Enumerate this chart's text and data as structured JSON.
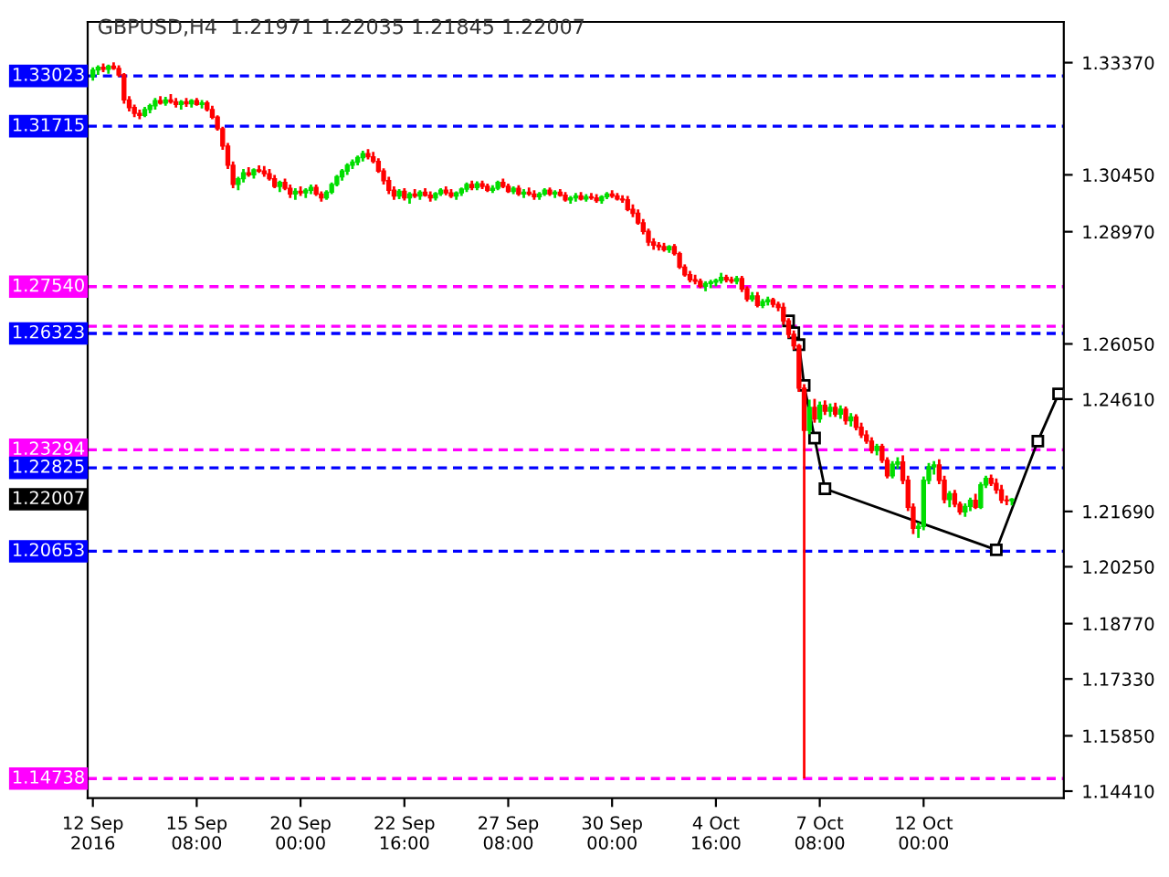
{
  "chart_data": {
    "type": "candlestick",
    "title": "GBPUSD,H4  1.21971 1.22035 1.21845 1.22007",
    "categories": [
      "12 Sep 2016",
      null,
      null,
      null,
      null,
      null,
      null,
      null,
      null,
      null,
      null,
      null,
      null,
      null,
      null,
      null,
      null,
      null,
      null,
      null,
      "15 Sep 08:00",
      null,
      null,
      null,
      null,
      null,
      null,
      null,
      null,
      null,
      null,
      null,
      null,
      null,
      null,
      null,
      null,
      null,
      null,
      null,
      "20 Sep 00:00",
      null,
      null,
      null,
      null,
      null,
      null,
      null,
      null,
      null,
      null,
      null,
      null,
      null,
      null,
      null,
      null,
      null,
      null,
      null,
      "22 Sep 16:00",
      null,
      null,
      null,
      null,
      null,
      null,
      null,
      null,
      null,
      null,
      null,
      null,
      null,
      null,
      null,
      null,
      null,
      null,
      null,
      "27 Sep 08:00",
      null,
      null,
      null,
      null,
      null,
      null,
      null,
      null,
      null,
      null,
      null,
      null,
      null,
      null,
      null,
      null,
      null,
      null,
      null,
      "30 Sep 00:00",
      null,
      null,
      null,
      null,
      null,
      null,
      null,
      null,
      null,
      null,
      null,
      null,
      null,
      null,
      null,
      null,
      null,
      null,
      null,
      "4 Oct 16:00",
      null,
      null,
      null,
      null,
      null,
      null,
      null,
      null,
      null,
      null,
      null,
      null,
      null,
      null,
      null,
      null,
      null,
      null,
      null,
      "7 Oct 08:00",
      null,
      null,
      null,
      null,
      null,
      null,
      null,
      null,
      null,
      null,
      null,
      null,
      null,
      null,
      null,
      null,
      null,
      null,
      null,
      "12 Oct 00:00",
      null,
      null,
      null,
      null,
      null,
      null,
      null,
      null,
      null,
      null,
      null,
      null,
      null,
      null,
      null,
      null,
      null,
      null,
      null,
      null,
      null,
      null,
      null,
      null,
      null,
      null
    ],
    "ohlc": [
      [
        1.33,
        1.3325,
        1.329,
        1.3318
      ],
      [
        1.3318,
        1.333,
        1.3305,
        1.3325
      ],
      [
        1.3325,
        1.3335,
        1.3312,
        1.332
      ],
      [
        1.332,
        1.3332,
        1.3308,
        1.3328
      ],
      [
        1.3328,
        1.3338,
        1.3318,
        1.3322
      ],
      [
        1.3322,
        1.333,
        1.33,
        1.3305
      ],
      [
        1.3305,
        1.331,
        1.323,
        1.324
      ],
      [
        1.324,
        1.325,
        1.321,
        1.322
      ],
      [
        1.322,
        1.3228,
        1.3195,
        1.3205
      ],
      [
        1.3205,
        1.3215,
        1.319,
        1.32
      ],
      [
        1.32,
        1.3222,
        1.3195,
        1.3215
      ],
      [
        1.3215,
        1.323,
        1.3205,
        1.3225
      ],
      [
        1.3225,
        1.3245,
        1.3215,
        1.3238
      ],
      [
        1.3238,
        1.325,
        1.3228,
        1.3232
      ],
      [
        1.3232,
        1.3248,
        1.3225,
        1.324
      ],
      [
        1.324,
        1.3255,
        1.323,
        1.3235
      ],
      [
        1.3235,
        1.3245,
        1.322,
        1.3228
      ],
      [
        1.3228,
        1.324,
        1.3215,
        1.3235
      ],
      [
        1.3235,
        1.3245,
        1.3222,
        1.323
      ],
      [
        1.323,
        1.3242,
        1.322,
        1.3238
      ],
      [
        1.3238,
        1.3245,
        1.3225,
        1.3228
      ],
      [
        1.3228,
        1.324,
        1.3218,
        1.3232
      ],
      [
        1.3232,
        1.3238,
        1.321,
        1.3215
      ],
      [
        1.3215,
        1.3225,
        1.319,
        1.3195
      ],
      [
        1.3195,
        1.32,
        1.316,
        1.3165
      ],
      [
        1.3165,
        1.317,
        1.311,
        1.312
      ],
      [
        1.312,
        1.3128,
        1.306,
        1.307
      ],
      [
        1.307,
        1.308,
        1.301,
        1.302
      ],
      [
        1.302,
        1.304,
        1.3005,
        1.3035
      ],
      [
        1.3035,
        1.306,
        1.3025,
        1.305
      ],
      [
        1.305,
        1.3065,
        1.304,
        1.3045
      ],
      [
        1.3045,
        1.3062,
        1.3035,
        1.3058
      ],
      [
        1.3058,
        1.307,
        1.305,
        1.3055
      ],
      [
        1.3055,
        1.3068,
        1.304,
        1.3048
      ],
      [
        1.3048,
        1.306,
        1.303,
        1.3035
      ],
      [
        1.3035,
        1.3045,
        1.301,
        1.3015
      ],
      [
        1.3015,
        1.303,
        1.3,
        1.3025
      ],
      [
        1.3025,
        1.3035,
        1.3005,
        1.301
      ],
      [
        1.301,
        1.302,
        1.2985,
        1.2995
      ],
      [
        1.2995,
        1.301,
        1.298,
        1.3002
      ],
      [
        1.3002,
        1.3015,
        1.299,
        1.2998
      ],
      [
        1.2998,
        1.301,
        1.2985,
        1.3005
      ],
      [
        1.3005,
        1.302,
        1.2995,
        1.3012
      ],
      [
        1.3012,
        1.302,
        1.299,
        1.2995
      ],
      [
        1.2995,
        1.3002,
        1.2975,
        1.2985
      ],
      [
        1.2985,
        1.3005,
        1.298,
        1.3
      ],
      [
        1.3,
        1.3025,
        1.2995,
        1.302
      ],
      [
        1.302,
        1.3045,
        1.3015,
        1.304
      ],
      [
        1.304,
        1.306,
        1.303,
        1.3055
      ],
      [
        1.3055,
        1.3075,
        1.3045,
        1.307
      ],
      [
        1.307,
        1.3085,
        1.306,
        1.3078
      ],
      [
        1.3078,
        1.3095,
        1.307,
        1.309
      ],
      [
        1.309,
        1.3108,
        1.308,
        1.31
      ],
      [
        1.31,
        1.3112,
        1.3085,
        1.3092
      ],
      [
        1.3092,
        1.3105,
        1.3075,
        1.308
      ],
      [
        1.308,
        1.3088,
        1.305,
        1.3055
      ],
      [
        1.3055,
        1.3062,
        1.302,
        1.303
      ],
      [
        1.303,
        1.304,
        1.2995,
        1.3005
      ],
      [
        1.3005,
        1.3015,
        1.298,
        1.299
      ],
      [
        1.299,
        1.3008,
        1.2982,
        1.3002
      ],
      [
        1.3002,
        1.301,
        1.2978,
        1.2985
      ],
      [
        1.2985,
        1.3,
        1.297,
        1.2995
      ],
      [
        1.2995,
        1.3008,
        1.2985,
        1.299
      ],
      [
        1.299,
        1.3005,
        1.298,
        1.3
      ],
      [
        1.3,
        1.301,
        1.2988,
        1.2992
      ],
      [
        1.2992,
        1.3002,
        1.2975,
        1.2985
      ],
      [
        1.2985,
        1.3,
        1.2978,
        1.2996
      ],
      [
        1.2996,
        1.301,
        1.299,
        1.3005
      ],
      [
        1.3005,
        1.3015,
        1.2992,
        1.2998
      ],
      [
        1.2998,
        1.3008,
        1.2985,
        1.299
      ],
      [
        1.299,
        1.3002,
        1.298,
        1.2998
      ],
      [
        1.2998,
        1.3012,
        1.299,
        1.3008
      ],
      [
        1.3008,
        1.3025,
        1.3,
        1.302
      ],
      [
        1.302,
        1.303,
        1.3005,
        1.3012
      ],
      [
        1.3012,
        1.3028,
        1.3005,
        1.3022
      ],
      [
        1.3022,
        1.303,
        1.3008,
        1.3015
      ],
      [
        1.3015,
        1.3022,
        1.3,
        1.3005
      ],
      [
        1.3005,
        1.3018,
        1.2998,
        1.301
      ],
      [
        1.301,
        1.303,
        1.3005,
        1.3025
      ],
      [
        1.3025,
        1.3035,
        1.301,
        1.3015
      ],
      [
        1.3015,
        1.3022,
        1.2998,
        1.3002
      ],
      [
        1.3002,
        1.3015,
        1.2995,
        1.301
      ],
      [
        1.301,
        1.3018,
        1.299,
        1.2995
      ],
      [
        1.2995,
        1.3008,
        1.2985,
        1.3
      ],
      [
        1.3,
        1.3012,
        1.299,
        1.2995
      ],
      [
        1.2995,
        1.3005,
        1.298,
        1.2988
      ],
      [
        1.2988,
        1.3,
        1.298,
        1.2995
      ],
      [
        1.2995,
        1.301,
        1.299,
        1.3005
      ],
      [
        1.3005,
        1.3012,
        1.299,
        1.2995
      ],
      [
        1.2995,
        1.3005,
        1.2985,
        1.3
      ],
      [
        1.3,
        1.3008,
        1.2988,
        1.2992
      ],
      [
        1.2992,
        1.3,
        1.2975,
        1.298
      ],
      [
        1.298,
        1.299,
        1.297,
        1.2985
      ],
      [
        1.2985,
        1.2998,
        1.2975,
        1.299
      ],
      [
        1.299,
        1.3,
        1.2978,
        1.2982
      ],
      [
        1.2982,
        1.2995,
        1.2975,
        1.2988
      ],
      [
        1.2988,
        1.2998,
        1.298,
        1.2985
      ],
      [
        1.2985,
        1.2995,
        1.2972,
        1.2978
      ],
      [
        1.2978,
        1.2992,
        1.297,
        1.2988
      ],
      [
        1.2988,
        1.3,
        1.2982,
        1.2995
      ],
      [
        1.2995,
        1.3005,
        1.2985,
        1.299
      ],
      [
        1.299,
        1.2998,
        1.2978,
        1.2982
      ],
      [
        1.2982,
        1.2992,
        1.2972,
        1.298
      ],
      [
        1.298,
        1.299,
        1.295,
        1.2955
      ],
      [
        1.2955,
        1.2968,
        1.2935,
        1.2945
      ],
      [
        1.2945,
        1.2955,
        1.2915,
        1.292
      ],
      [
        1.292,
        1.293,
        1.289,
        1.2898
      ],
      [
        1.2898,
        1.2905,
        1.286,
        1.287
      ],
      [
        1.287,
        1.288,
        1.285,
        1.2862
      ],
      [
        1.2862,
        1.287,
        1.2848,
        1.2858
      ],
      [
        1.2858,
        1.2868,
        1.2845,
        1.285
      ],
      [
        1.285,
        1.2862,
        1.2842,
        1.2858
      ],
      [
        1.2858,
        1.2865,
        1.2835,
        1.284
      ],
      [
        1.284,
        1.2845,
        1.28,
        1.2805
      ],
      [
        1.2805,
        1.2812,
        1.278,
        1.2785
      ],
      [
        1.2785,
        1.2795,
        1.2765,
        1.2772
      ],
      [
        1.2772,
        1.2785,
        1.276,
        1.2768
      ],
      [
        1.2768,
        1.2775,
        1.275,
        1.2755
      ],
      [
        1.2755,
        1.2768,
        1.2742,
        1.2762
      ],
      [
        1.2762,
        1.2772,
        1.275,
        1.2766
      ],
      [
        1.2766,
        1.2775,
        1.2755,
        1.277
      ],
      [
        1.277,
        1.279,
        1.2762,
        1.2778
      ],
      [
        1.2778,
        1.2785,
        1.2765,
        1.2772
      ],
      [
        1.2772,
        1.278,
        1.2762,
        1.2768
      ],
      [
        1.2768,
        1.2782,
        1.276,
        1.2775
      ],
      [
        1.2775,
        1.2782,
        1.274,
        1.2748
      ],
      [
        1.2748,
        1.2755,
        1.2715,
        1.2722
      ],
      [
        1.2722,
        1.274,
        1.2715,
        1.273
      ],
      [
        1.273,
        1.274,
        1.27,
        1.2705
      ],
      [
        1.2705,
        1.2722,
        1.2698,
        1.2715
      ],
      [
        1.2715,
        1.2728,
        1.2705,
        1.272
      ],
      [
        1.272,
        1.2725,
        1.27,
        1.2708
      ],
      [
        1.2708,
        1.2715,
        1.269,
        1.27
      ],
      [
        1.27,
        1.2712,
        1.2655,
        1.2665
      ],
      [
        1.2665,
        1.2672,
        1.262,
        1.263
      ],
      [
        1.263,
        1.264,
        1.259,
        1.26
      ],
      [
        1.26,
        1.2605,
        1.248,
        1.249
      ],
      [
        1.249,
        1.25,
        1.1474,
        1.238
      ],
      [
        1.238,
        1.246,
        1.237,
        1.244
      ],
      [
        1.244,
        1.2462,
        1.24,
        1.241
      ],
      [
        1.241,
        1.2455,
        1.24,
        1.2445
      ],
      [
        1.2445,
        1.2458,
        1.242,
        1.243
      ],
      [
        1.243,
        1.245,
        1.2415,
        1.244
      ],
      [
        1.244,
        1.2452,
        1.2415,
        1.2422
      ],
      [
        1.2422,
        1.2445,
        1.241,
        1.2435
      ],
      [
        1.2435,
        1.2442,
        1.2395,
        1.2405
      ],
      [
        1.2405,
        1.2425,
        1.239,
        1.2415
      ],
      [
        1.2415,
        1.2422,
        1.238,
        1.2388
      ],
      [
        1.2388,
        1.24,
        1.236,
        1.2368
      ],
      [
        1.2368,
        1.238,
        1.2345,
        1.2352
      ],
      [
        1.2352,
        1.2362,
        1.232,
        1.2328
      ],
      [
        1.2328,
        1.2345,
        1.2315,
        1.2338
      ],
      [
        1.2338,
        1.2345,
        1.2295,
        1.2302
      ],
      [
        1.2302,
        1.231,
        1.2255,
        1.2262
      ],
      [
        1.2262,
        1.23,
        1.2255,
        1.2292
      ],
      [
        1.2292,
        1.231,
        1.228,
        1.2298
      ],
      [
        1.2298,
        1.2315,
        1.224,
        1.225
      ],
      [
        1.225,
        1.2262,
        1.217,
        1.218
      ],
      [
        1.218,
        1.219,
        1.211,
        1.2125
      ],
      [
        1.2125,
        1.214,
        1.21,
        1.213
      ],
      [
        1.213,
        1.226,
        1.212,
        1.225
      ],
      [
        1.225,
        1.2295,
        1.224,
        1.2285
      ],
      [
        1.2285,
        1.23,
        1.2265,
        1.229
      ],
      [
        1.229,
        1.2305,
        1.224,
        1.225
      ],
      [
        1.225,
        1.2262,
        1.219,
        1.22
      ],
      [
        1.22,
        1.2222,
        1.218,
        1.2215
      ],
      [
        1.2215,
        1.2225,
        1.218,
        1.2188
      ],
      [
        1.2188,
        1.2195,
        1.216,
        1.2168
      ],
      [
        1.2168,
        1.219,
        1.2155,
        1.2182
      ],
      [
        1.2182,
        1.2205,
        1.217,
        1.2198
      ],
      [
        1.2198,
        1.2215,
        1.2175,
        1.218
      ],
      [
        1.218,
        1.2245,
        1.2175,
        1.2238
      ],
      [
        1.2238,
        1.2262,
        1.223,
        1.2255
      ],
      [
        1.2255,
        1.2265,
        1.2235,
        1.2242
      ],
      [
        1.2242,
        1.2255,
        1.2215,
        1.2225
      ],
      [
        1.2225,
        1.2238,
        1.219,
        1.2198
      ],
      [
        1.2198,
        1.221,
        1.2185,
        1.2197
      ],
      [
        1.21971,
        1.22035,
        1.21845,
        1.22007
      ],
      null,
      null,
      null,
      null,
      null,
      null,
      null,
      null,
      null
    ],
    "series": [
      {
        "type": "line",
        "color": "#000000",
        "marker": "square",
        "values": [
          null,
          null,
          null,
          null,
          null,
          null,
          null,
          null,
          null,
          null,
          null,
          null,
          null,
          null,
          null,
          null,
          null,
          null,
          null,
          null,
          null,
          null,
          null,
          null,
          null,
          null,
          null,
          null,
          null,
          null,
          null,
          null,
          null,
          null,
          null,
          null,
          null,
          null,
          null,
          null,
          null,
          null,
          null,
          null,
          null,
          null,
          null,
          null,
          null,
          null,
          null,
          null,
          null,
          null,
          null,
          null,
          null,
          null,
          null,
          null,
          null,
          null,
          null,
          null,
          null,
          null,
          null,
          null,
          null,
          null,
          null,
          null,
          null,
          null,
          null,
          null,
          null,
          null,
          null,
          null,
          null,
          null,
          null,
          null,
          null,
          null,
          null,
          null,
          null,
          null,
          null,
          null,
          null,
          null,
          null,
          null,
          null,
          null,
          null,
          null,
          null,
          null,
          null,
          null,
          null,
          null,
          null,
          null,
          null,
          null,
          null,
          null,
          null,
          null,
          null,
          null,
          null,
          null,
          null,
          null,
          null,
          null,
          null,
          null,
          null,
          null,
          null,
          null,
          null,
          null,
          null,
          null,
          null,
          null,
          1.2665,
          1.2634,
          1.2603,
          1.2497,
          null,
          1.236,
          null,
          1.2228,
          null,
          null,
          null,
          null,
          null,
          null,
          null,
          null,
          null,
          null,
          null,
          null,
          null,
          null,
          null,
          null,
          null,
          null,
          null,
          null,
          null,
          null,
          null,
          null,
          null,
          null,
          null,
          null,
          null,
          null,
          null,
          null,
          1.2069,
          null,
          null,
          null,
          null,
          null,
          null,
          null,
          1.2352,
          null,
          null,
          null,
          1.2475
        ]
      }
    ],
    "ylim": [
      1.1423,
      1.3443
    ],
    "yticks": [
      {
        "value": 1.3337,
        "label": "1.33370"
      },
      {
        "value": 1.3045,
        "label": "1.30450"
      },
      {
        "value": 1.2897,
        "label": "1.28970"
      },
      {
        "value": 1.2605,
        "label": "1.26050"
      },
      {
        "value": 1.2461,
        "label": "1.24610"
      },
      {
        "value": 1.2169,
        "label": "1.21690"
      },
      {
        "value": 1.2025,
        "label": "1.20250"
      },
      {
        "value": 1.1877,
        "label": "1.18770"
      },
      {
        "value": 1.1733,
        "label": "1.17330"
      },
      {
        "value": 1.1585,
        "label": "1.15850"
      },
      {
        "value": 1.1441,
        "label": "1.14410"
      }
    ],
    "ref_lines": [
      {
        "axis": "y",
        "value": 1.33023,
        "label": "1.33023",
        "color": "#0000ff",
        "line_style": "dashed"
      },
      {
        "axis": "y",
        "value": 1.31715,
        "label": "1.31715",
        "color": "#0000ff",
        "line_style": "dashed"
      },
      {
        "axis": "y",
        "value": 1.2754,
        "label": "1.27540",
        "color": "#ff00ff",
        "line_style": "dashed"
      },
      {
        "axis": "y",
        "value": 1.2651,
        "color": "#ff00ff",
        "line_style": "dashed"
      },
      {
        "axis": "y",
        "value": 1.26323,
        "label": "1.26323",
        "color": "#0000ff",
        "line_style": "dashed"
      },
      {
        "axis": "y",
        "value": 1.23294,
        "label": "1.23294",
        "color": "#ff00ff",
        "line_style": "dashed"
      },
      {
        "axis": "y",
        "value": 1.22825,
        "label": "1.22825",
        "color": "#0000ff",
        "line_style": "dashed"
      },
      {
        "axis": "y",
        "value": 1.20653,
        "label": "1.20653",
        "color": "#0000ff",
        "line_style": "dashed"
      },
      {
        "axis": "y",
        "value": 1.14738,
        "label": "1.14738",
        "color": "#ff00ff",
        "line_style": "dashed"
      }
    ],
    "annotations": [
      "1.22007"
    ],
    "grid": false,
    "legend": false
  }
}
